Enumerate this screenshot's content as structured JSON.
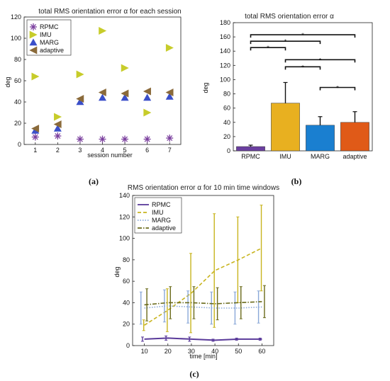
{
  "captions": [
    "(a)",
    "(b)",
    "(c)"
  ],
  "chart_data": [
    {
      "type": "scatter",
      "title": "total RMS orientation error α  for each session",
      "xlabel": "session number",
      "ylabel": "deg",
      "xlim": [
        0.5,
        7.5
      ],
      "ylim": [
        0,
        120
      ],
      "xticks": [
        1,
        2,
        3,
        4,
        5,
        6,
        7
      ],
      "yticks": [
        0,
        20,
        40,
        60,
        80,
        100,
        120
      ],
      "legend_position": "top-left",
      "series": [
        {
          "name": "RPMC",
          "marker": "asterisk",
          "color": "#7b3f9e",
          "x": [
            1,
            2,
            3,
            4,
            5,
            6,
            7
          ],
          "y": [
            7,
            8,
            5,
            5,
            5,
            5,
            6
          ]
        },
        {
          "name": "IMU",
          "marker": "triangle-right",
          "color": "#c7cc2a",
          "x": [
            1,
            2,
            3,
            4,
            5,
            6,
            7
          ],
          "y": [
            64,
            26,
            66,
            107,
            72,
            30,
            91
          ]
        },
        {
          "name": "MARG",
          "marker": "triangle-up",
          "color": "#3a4fc9",
          "x": [
            1,
            2,
            3,
            4,
            5,
            6,
            7
          ],
          "y": [
            13,
            15,
            40,
            44,
            44,
            44,
            45
          ]
        },
        {
          "name": "adaptive",
          "marker": "triangle-left",
          "color": "#8a6a3a",
          "x": [
            1,
            2,
            3,
            4,
            5,
            6,
            7
          ],
          "y": [
            15,
            19,
            43,
            49,
            48,
            50,
            49
          ]
        }
      ]
    },
    {
      "type": "bar",
      "title": "total RMS orientation error α",
      "ylabel": "deg",
      "categories": [
        "RPMC",
        "IMU",
        "MARG",
        "adaptive"
      ],
      "values": [
        6,
        67,
        36,
        40
      ],
      "errors": [
        2,
        29,
        12,
        15
      ],
      "colors": [
        "#6b3fa0",
        "#e8b020",
        "#1a7fd0",
        "#e05a18"
      ],
      "ylim": [
        0,
        180
      ],
      "yticks": [
        0,
        20,
        40,
        60,
        80,
        100,
        120,
        140,
        160,
        180
      ],
      "significance": [
        {
          "from": 0,
          "to": 3,
          "label": "*"
        },
        {
          "from": 0,
          "to": 2,
          "label": "*"
        },
        {
          "from": 0,
          "to": 1,
          "label": "*"
        },
        {
          "from": 1,
          "to": 3,
          "label": "*"
        },
        {
          "from": 1,
          "to": 2,
          "label": "*"
        },
        {
          "from": 2,
          "to": 3,
          "label": "*"
        }
      ]
    },
    {
      "type": "line",
      "title": "RMS orientation error α for 10 min time windows",
      "xlabel": "time [min]",
      "ylabel": "deg",
      "xlim": [
        5,
        65
      ],
      "ylim": [
        0,
        140
      ],
      "xticks": [
        10,
        20,
        30,
        40,
        50,
        60
      ],
      "yticks": [
        0,
        20,
        40,
        60,
        80,
        100,
        120,
        140
      ],
      "legend_position": "top-left",
      "x": [
        10,
        20,
        30,
        40,
        50,
        60
      ],
      "series": [
        {
          "name": "RPMC",
          "style": "solid",
          "color": "#5a3a9a",
          "y": [
            6,
            7,
            6,
            5,
            6,
            6
          ],
          "err": [
            2,
            2,
            2,
            1,
            1,
            1
          ]
        },
        {
          "name": "IMU",
          "style": "dashed",
          "color": "#c8b41e",
          "y": [
            19,
            33,
            49,
            70,
            80,
            91
          ],
          "err": [
            5,
            20,
            37,
            53,
            40,
            40
          ]
        },
        {
          "name": "MARG",
          "style": "dotted",
          "color": "#8aa8d8",
          "y": [
            35,
            37,
            36,
            35,
            35,
            36
          ],
          "err": [
            15,
            15,
            15,
            15,
            15,
            15
          ]
        },
        {
          "name": "adaptive",
          "style": "dashdot",
          "color": "#6a6a1a",
          "y": [
            38,
            40,
            40,
            39,
            40,
            41
          ],
          "err": [
            15,
            15,
            15,
            15,
            15,
            15
          ]
        }
      ]
    }
  ]
}
